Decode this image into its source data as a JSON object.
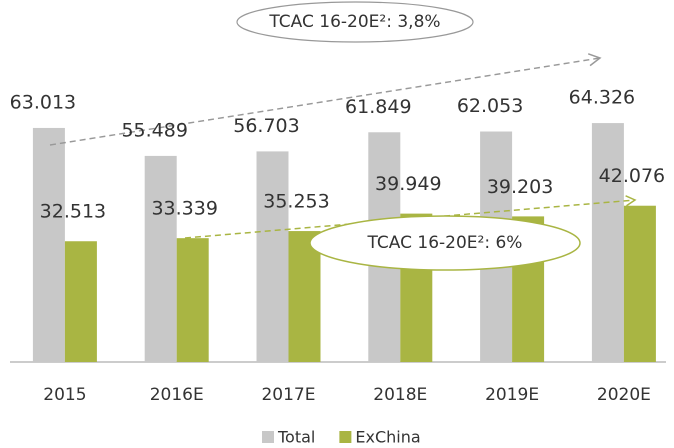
{
  "chart_data": {
    "type": "bar",
    "categories": [
      "2015",
      "2016E",
      "2017E",
      "2018E",
      "2019E",
      "2020E"
    ],
    "series": [
      {
        "name": "Total",
        "color": "#c8c8c8",
        "values": [
          63013,
          55489,
          56703,
          61849,
          62053,
          64326
        ],
        "value_labels": [
          "63.013",
          "55.489",
          "56.703",
          "61.849",
          "62.053",
          "64.326"
        ]
      },
      {
        "name": "ExChina",
        "color": "#a9b543",
        "values": [
          32513,
          33339,
          35253,
          39949,
          39203,
          42076
        ],
        "value_labels": [
          "32.513",
          "33.339",
          "35.253",
          "39.949",
          "39.203",
          "42.076"
        ]
      }
    ],
    "ylim": [
      0,
      70000
    ],
    "annotations": [
      "TCAC 16-20E²: 3,8%",
      "TCAC 16-20E²: 6%"
    ],
    "legend": "bottom"
  }
}
